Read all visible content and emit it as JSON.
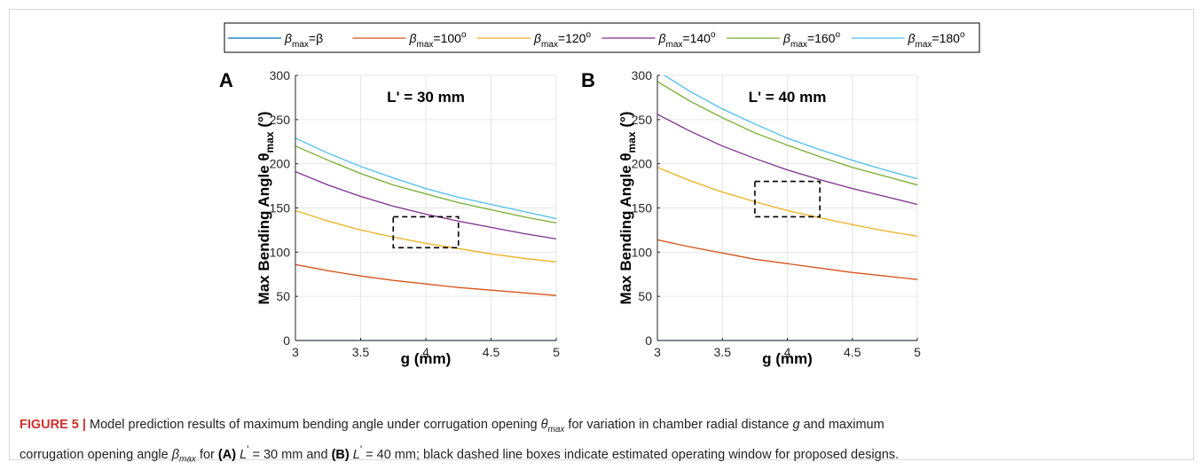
{
  "legend": {
    "entries": [
      {
        "label": "β",
        "sub": "max",
        "suffix": "=β",
        "color": "#0072bd"
      },
      {
        "label": "β",
        "sub": "max",
        "suffix": "=100",
        "sup": "o",
        "color": "#d95319"
      },
      {
        "label": "β",
        "sub": "max",
        "suffix": "=120",
        "sup": "o",
        "color": "#edb120"
      },
      {
        "label": "β",
        "sub": "max",
        "suffix": "=140",
        "sup": "o",
        "color": "#7e2f8e"
      },
      {
        "label": "β",
        "sub": "max",
        "suffix": "=160",
        "sup": "o",
        "color": "#77ac30"
      },
      {
        "label": "β",
        "sub": "max",
        "suffix": "=180",
        "sup": "o",
        "color": "#4dbeee"
      }
    ]
  },
  "chart_data": [
    {
      "type": "line",
      "panel_label": "A",
      "annotation": "L' = 30 mm",
      "xlabel": "g (mm)",
      "ylabel_main": "Max Bending Angle θ",
      "ylabel_sub": "max",
      "ylabel_unit": "(°)",
      "xlim": [
        3,
        5
      ],
      "ylim": [
        0,
        300
      ],
      "xticks": [
        3,
        3.5,
        4,
        4.5,
        5
      ],
      "xtick_labels": [
        "3",
        "3.5",
        "4",
        "4.5",
        "5"
      ],
      "yticks": [
        0,
        50,
        100,
        150,
        200,
        250,
        300
      ],
      "ytick_labels": [
        "0",
        "50",
        "100",
        "150",
        "200",
        "250",
        "300"
      ],
      "grid": true,
      "x": [
        3,
        3.25,
        3.5,
        3.75,
        4,
        4.25,
        4.5,
        4.75,
        5
      ],
      "series": [
        {
          "color": "#0072bd",
          "values": [
            0,
            0,
            0,
            0,
            0,
            0,
            0,
            0,
            0
          ]
        },
        {
          "color": "#d95319",
          "values": [
            86,
            79,
            73,
            68,
            64,
            60,
            57,
            54,
            51
          ]
        },
        {
          "color": "#edb120",
          "values": [
            147,
            135,
            125,
            117,
            110,
            104,
            98,
            93,
            89
          ]
        },
        {
          "color": "#7e2f8e",
          "values": [
            191,
            176,
            163,
            152,
            143,
            135,
            128,
            121,
            115
          ]
        },
        {
          "color": "#77ac30",
          "values": [
            220,
            204,
            189,
            176,
            166,
            156,
            148,
            140,
            133
          ]
        },
        {
          "color": "#4dbeee",
          "values": [
            229,
            212,
            197,
            184,
            172,
            162,
            154,
            146,
            138
          ]
        }
      ],
      "box": {
        "x": [
          3.75,
          4.25
        ],
        "y": [
          105,
          140
        ]
      }
    },
    {
      "type": "line",
      "panel_label": "B",
      "annotation": "L' = 40 mm",
      "xlabel": "g (mm)",
      "ylabel_main": "Max Bending Angle θ",
      "ylabel_sub": "max",
      "ylabel_unit": "(°)",
      "xlim": [
        3,
        5
      ],
      "ylim": [
        0,
        300
      ],
      "xticks": [
        3,
        3.5,
        4,
        4.5,
        5
      ],
      "xtick_labels": [
        "3",
        "3.5",
        "4",
        "4.5",
        "5"
      ],
      "yticks": [
        0,
        50,
        100,
        150,
        200,
        250,
        300
      ],
      "ytick_labels": [
        "0",
        "50",
        "100",
        "150",
        "200",
        "250",
        "300"
      ],
      "grid": true,
      "x": [
        3,
        3.25,
        3.5,
        3.75,
        4,
        4.25,
        4.5,
        4.75,
        5
      ],
      "series": [
        {
          "color": "#0072bd",
          "values": [
            0,
            0,
            0,
            0,
            0,
            0,
            0,
            0,
            0
          ]
        },
        {
          "color": "#d95319",
          "values": [
            114,
            106,
            99,
            92,
            87,
            82,
            77,
            73,
            69
          ]
        },
        {
          "color": "#edb120",
          "values": [
            196,
            181,
            168,
            157,
            147,
            139,
            131,
            124,
            118
          ]
        },
        {
          "color": "#7e2f8e",
          "values": [
            256,
            237,
            220,
            206,
            193,
            182,
            172,
            163,
            154
          ]
        },
        {
          "color": "#77ac30",
          "values": [
            293,
            271,
            252,
            235,
            221,
            208,
            196,
            186,
            176
          ]
        },
        {
          "color": "#4dbeee",
          "values": [
            305,
            282,
            262,
            245,
            229,
            216,
            204,
            193,
            183
          ]
        }
      ],
      "box": {
        "x": [
          3.75,
          4.25
        ],
        "y": [
          140,
          180
        ]
      }
    }
  ],
  "caption": {
    "fig_label": "FIGURE 5 |",
    "t1": " Model prediction results of maximum bending angle under corrugation opening ",
    "theta": "θ",
    "theta_sub": "max",
    "t2": " for variation in chamber radial distance ",
    "g": "g",
    "t3": " and maximum",
    "t4": "corrugation opening angle ",
    "beta": "β",
    "beta_sub": "max",
    "t5": " for ",
    "a_label": "(A)",
    "l1": "L",
    "l1_sup": "'",
    "t6": " = 30 mm and ",
    "b_label": "(B)",
    "l2": "L",
    "l2_sup": "'",
    "t7": " = 40 mm; black dashed line boxes indicate estimated operating window for proposed designs."
  }
}
